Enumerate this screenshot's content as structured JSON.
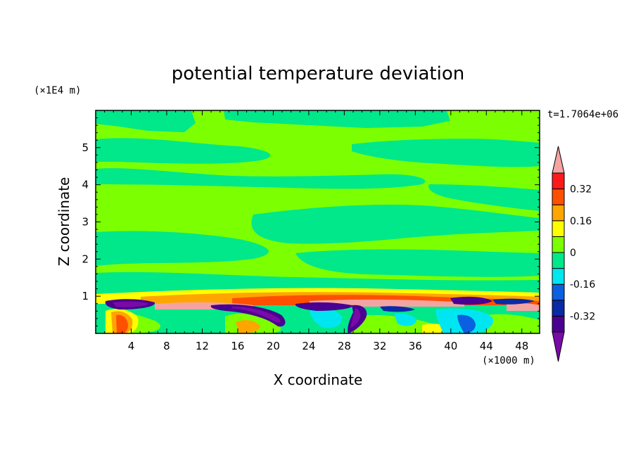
{
  "chart_data": {
    "type": "heatmap",
    "title": "potential temperature deviation",
    "time_label": "t=1.7064e+06",
    "xlabel": "X coordinate",
    "ylabel": "Z coordinate",
    "x_unit": "(×1000 m)",
    "y_unit": "(×1E4 m)",
    "xlim": [
      0,
      50
    ],
    "ylim": [
      0,
      6
    ],
    "x_ticks": [
      "4",
      "8",
      "12",
      "16",
      "20",
      "24",
      "28",
      "32",
      "36",
      "40",
      "44",
      "48"
    ],
    "x_tick_values": [
      4,
      8,
      12,
      16,
      20,
      24,
      28,
      32,
      36,
      40,
      44,
      48
    ],
    "y_ticks": [
      "1",
      "2",
      "3",
      "4",
      "5"
    ],
    "y_tick_values": [
      1,
      2,
      3,
      4,
      5
    ],
    "colorbar": {
      "colors": [
        "#7a0aa8",
        "#4a0090",
        "#0a2aa6",
        "#0a60e0",
        "#00e6f0",
        "#00e88a",
        "#7cff00",
        "#ffff00",
        "#ffa500",
        "#ff5000",
        "#ff1a1a",
        "#f4a3a3"
      ],
      "boundaries": [
        -0.4,
        -0.32,
        -0.24,
        -0.16,
        -0.08,
        0,
        0.08,
        0.16,
        0.24,
        0.32,
        0.4
      ],
      "tick_labels": [
        "0.32",
        "0.16",
        "0",
        "-0.16",
        "-0.32"
      ],
      "tick_values": [
        0.32,
        0.16,
        0,
        -0.16,
        -0.32
      ]
    }
  }
}
